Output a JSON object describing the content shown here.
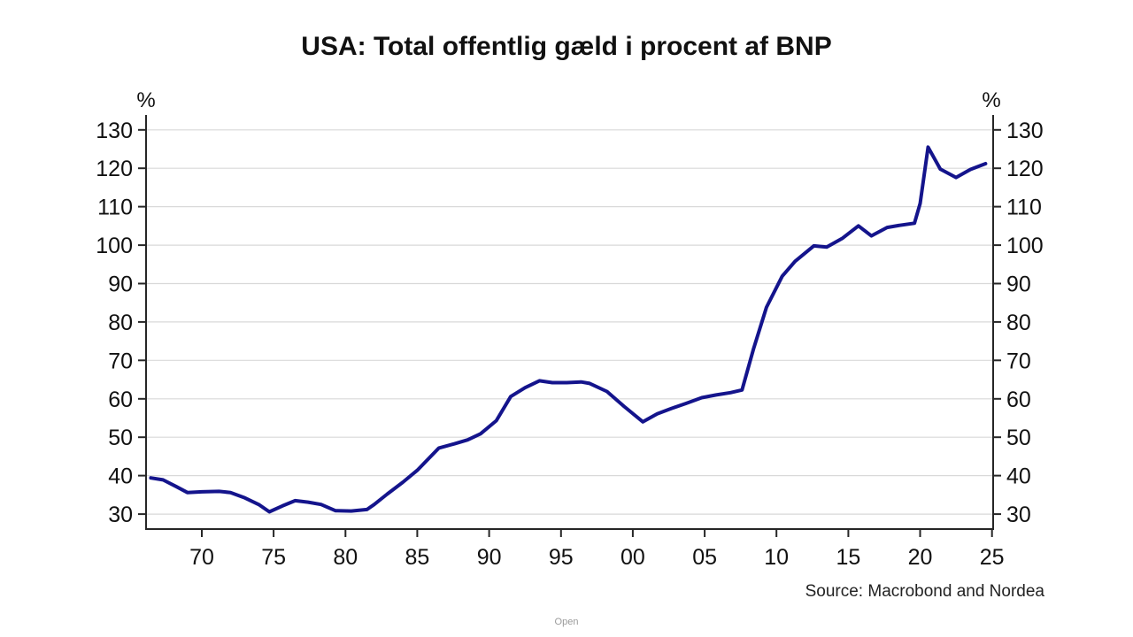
{
  "page": {
    "title": "USA: Total offentlig gæld i procent af BNP",
    "source": "Source: Macrobond and Nordea",
    "footer_button": "Open"
  },
  "chart_data": {
    "type": "line",
    "title": "USA: Total offentlig gæld i procent af BNP",
    "ylabel_left": "%",
    "ylabel_right": "%",
    "xlabel": "",
    "grid": "horizontal",
    "legend": "none",
    "xlim": [
      1966.12,
      2025.08
    ],
    "ylim": [
      26.1,
      133.86
    ],
    "y_ticks": [
      30,
      40,
      50,
      60,
      70,
      80,
      90,
      100,
      110,
      120,
      130
    ],
    "x_ticks": [
      {
        "year": 1970,
        "label": "70"
      },
      {
        "year": 1975,
        "label": "75"
      },
      {
        "year": 1980,
        "label": "80"
      },
      {
        "year": 1985,
        "label": "85"
      },
      {
        "year": 1990,
        "label": "90"
      },
      {
        "year": 1995,
        "label": "95"
      },
      {
        "year": 2000,
        "label": "00"
      },
      {
        "year": 2005,
        "label": "05"
      },
      {
        "year": 2010,
        "label": "10"
      },
      {
        "year": 2015,
        "label": "15"
      },
      {
        "year": 2020,
        "label": "20"
      },
      {
        "year": 2025,
        "label": "25"
      }
    ],
    "colors": {
      "line": "#14148c",
      "grid": "#d9d9d9",
      "axis": "#262626",
      "text": "#111111"
    },
    "series": [
      {
        "name": "USA total offentlig gæld i procent af BNP",
        "color": "#14148c",
        "points": [
          [
            1966.45,
            39.4
          ],
          [
            1967.3,
            38.9
          ],
          [
            1968.2,
            37.2
          ],
          [
            1969.0,
            35.6
          ],
          [
            1970.0,
            35.8
          ],
          [
            1971.2,
            35.9
          ],
          [
            1972.0,
            35.6
          ],
          [
            1973.0,
            34.2
          ],
          [
            1974.0,
            32.4
          ],
          [
            1974.7,
            30.6
          ],
          [
            1975.6,
            32.1
          ],
          [
            1976.5,
            33.5
          ],
          [
            1977.4,
            33.1
          ],
          [
            1978.3,
            32.5
          ],
          [
            1979.3,
            30.9
          ],
          [
            1980.4,
            30.8
          ],
          [
            1981.5,
            31.2
          ],
          [
            1982.0,
            32.5
          ],
          [
            1982.9,
            35.2
          ],
          [
            1984.0,
            38.3
          ],
          [
            1985.0,
            41.4
          ],
          [
            1986.5,
            47.2
          ],
          [
            1987.6,
            48.3
          ],
          [
            1988.5,
            49.3
          ],
          [
            1989.4,
            50.9
          ],
          [
            1990.5,
            54.3
          ],
          [
            1991.5,
            60.6
          ],
          [
            1992.5,
            62.9
          ],
          [
            1993.5,
            64.7
          ],
          [
            1994.4,
            64.2
          ],
          [
            1995.4,
            64.2
          ],
          [
            1996.4,
            64.4
          ],
          [
            1997.0,
            64.0
          ],
          [
            1998.2,
            61.9
          ],
          [
            1999.4,
            58.0
          ],
          [
            2000.7,
            54.0
          ],
          [
            2001.7,
            56.1
          ],
          [
            2002.7,
            57.5
          ],
          [
            2003.7,
            58.8
          ],
          [
            2004.8,
            60.3
          ],
          [
            2005.8,
            61.0
          ],
          [
            2006.8,
            61.6
          ],
          [
            2007.6,
            62.3
          ],
          [
            2008.4,
            73.0
          ],
          [
            2009.3,
            83.8
          ],
          [
            2010.4,
            91.9
          ],
          [
            2011.3,
            95.8
          ],
          [
            2012.6,
            99.8
          ],
          [
            2013.5,
            99.5
          ],
          [
            2014.6,
            101.8
          ],
          [
            2015.7,
            105.0
          ],
          [
            2016.6,
            102.4
          ],
          [
            2017.7,
            104.6
          ],
          [
            2018.5,
            105.1
          ],
          [
            2019.6,
            105.7
          ],
          [
            2020.0,
            110.8
          ],
          [
            2020.55,
            125.5
          ],
          [
            2021.4,
            119.8
          ],
          [
            2022.5,
            117.6
          ],
          [
            2023.5,
            119.7
          ],
          [
            2024.55,
            121.2
          ]
        ]
      }
    ]
  }
}
